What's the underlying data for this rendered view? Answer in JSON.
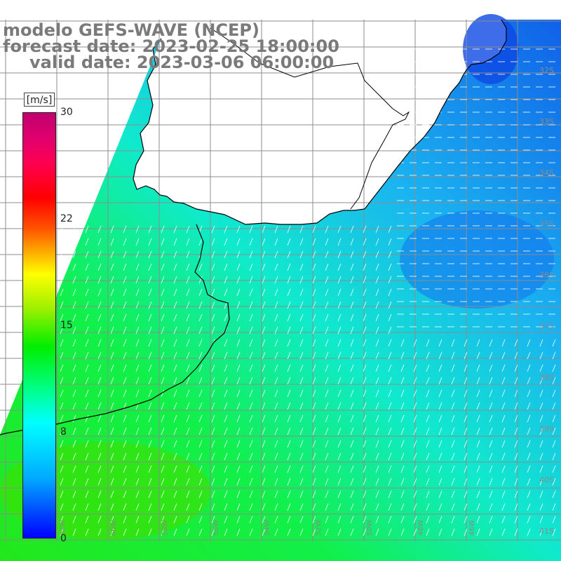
{
  "title": {
    "line1": "modelo GEFS-WAVE (NCEP)",
    "line2": "forecast date: 2023-02-25 18:00:00",
    "line3": "valid date: 2023-03-06 06:00:00"
  },
  "colorbar": {
    "unit": "[m/s]",
    "min": 0,
    "max": 30,
    "ticks": [
      30,
      22,
      15,
      8,
      0
    ],
    "colors": [
      "#0000ff",
      "#00ffff",
      "#00ee00",
      "#ffff00",
      "#ff0000",
      "#c0006e"
    ]
  },
  "map": {
    "layer": "wind speed",
    "right_edge_labels": [
      "32S",
      "33S",
      "34S",
      "35S",
      "36S",
      "37S",
      "38S",
      "39S",
      "40S",
      "41S"
    ],
    "bottom_edge_labels": [
      "62W",
      "60W",
      "58W",
      "56W",
      "54W",
      "52W",
      "50W",
      "48W",
      "46W"
    ],
    "land_color": "#ffffff",
    "grid_color": "#8c8c8c",
    "coast_color": "#000000",
    "arrow_color": "#ffffff"
  }
}
